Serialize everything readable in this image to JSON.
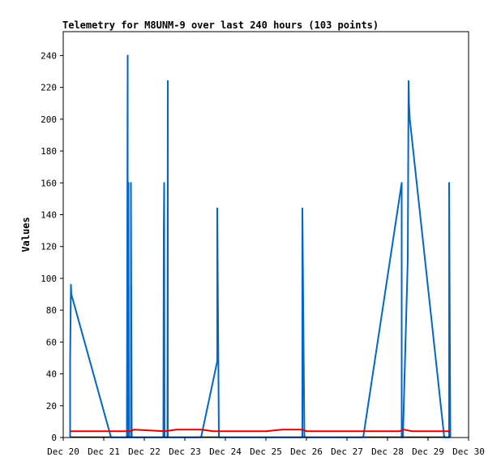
{
  "chart_data": {
    "type": "line",
    "title": "Telemetry for M8UNM-9 over last 240 hours (103 points)",
    "xlabel": "",
    "ylabel": "Values",
    "x_ticks": [
      "Dec 20",
      "Dec 21",
      "Dec 22",
      "Dec 23",
      "Dec 24",
      "Dec 25",
      "Dec 26",
      "Dec 27",
      "Dec 28",
      "Dec 29",
      "Dec 30"
    ],
    "y_ticks": [
      0,
      20,
      40,
      60,
      80,
      100,
      120,
      140,
      160,
      180,
      200,
      220,
      240
    ],
    "xlim": [
      0,
      10
    ],
    "ylim": [
      0,
      255
    ],
    "grid": false,
    "series": [
      {
        "color": "#0066cc",
        "x": [
          0.17,
          0.17,
          0.19,
          0.2,
          1.18,
          1.2,
          1.2,
          1.57,
          1.59,
          1.59,
          1.61,
          1.61,
          1.62,
          1.67,
          1.67,
          1.69,
          1.7,
          2.47,
          2.48,
          2.49,
          2.5,
          2.5,
          2.57,
          2.58,
          2.58,
          2.6,
          3.4,
          3.8,
          3.8,
          3.82,
          3.84,
          3.85,
          5.9,
          5.9,
          5.93,
          5.95,
          7.4,
          8.35,
          8.35,
          8.38,
          8.5,
          8.52,
          8.53,
          8.55,
          9.4,
          9.45,
          9.52,
          9.52,
          9.55
        ],
        "y": [
          0,
          48,
          96,
          90,
          0,
          0,
          0,
          0,
          240,
          0,
          0,
          160,
          0,
          0,
          160,
          0,
          0,
          0,
          128,
          160,
          0,
          0,
          0,
          224,
          0,
          0,
          0,
          48,
          144,
          72,
          0,
          0,
          0,
          144,
          56,
          0,
          0,
          160,
          0,
          0,
          112,
          224,
          210,
          200,
          0,
          0,
          0,
          160,
          0
        ]
      },
      {
        "color": "#dd0000",
        "x": [
          0.17,
          1.5,
          1.65,
          1.75,
          2.5,
          2.8,
          3.2,
          3.4,
          3.7,
          4.5,
          5.0,
          5.4,
          5.6,
          5.9,
          6.0,
          6.5,
          7.0,
          8.3,
          8.4,
          8.6,
          9.55
        ],
        "y": [
          4,
          4,
          4,
          5,
          4,
          5,
          5,
          5,
          4,
          4,
          4,
          5,
          5,
          5,
          4,
          4,
          4,
          4,
          5,
          4,
          4
        ]
      },
      {
        "color": "#000000",
        "x": [
          0.17,
          9.55
        ],
        "y": [
          0.4,
          0.4
        ]
      }
    ]
  }
}
